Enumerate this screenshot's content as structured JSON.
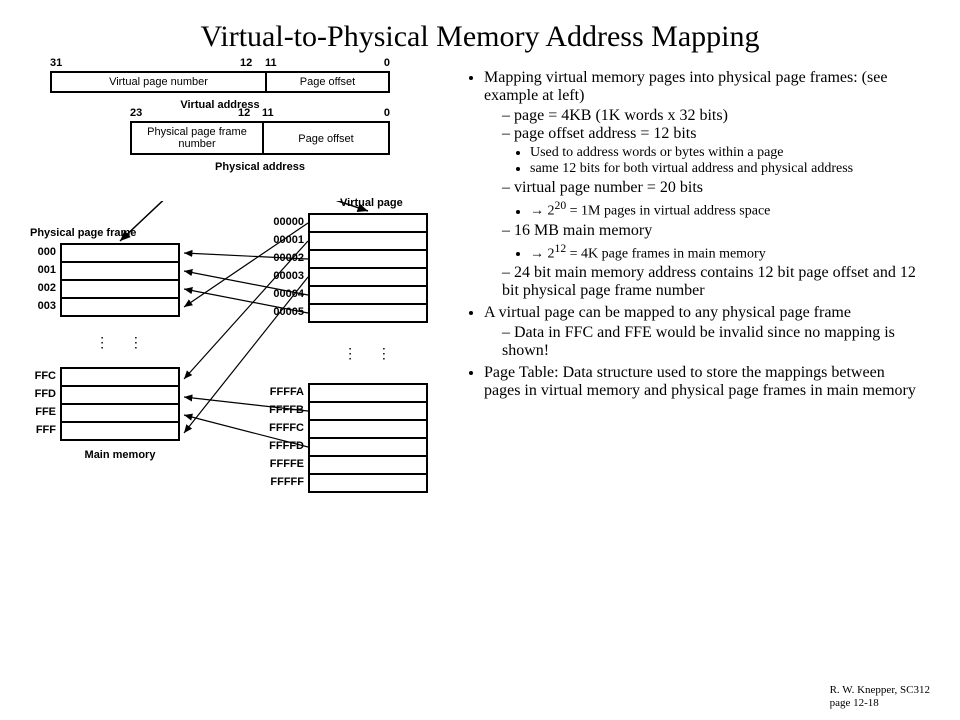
{
  "title": "Virtual-to-Physical Memory Address Mapping",
  "bullets": {
    "b1": "Mapping virtual memory pages into physical page frames:  (see example at left)",
    "b1_1": "page = 4KB (1K words x 32 bits)",
    "b1_2": "page offset address = 12 bits",
    "b1_2_1": "Used to address words or bytes within a page",
    "b1_2_2": "same 12 bits for both virtual address and physical address",
    "b1_3": "virtual page number = 20 bits",
    "b1_3_1_pre": "→ 2",
    "b1_3_1_sup": "20",
    "b1_3_1_post": " = 1M pages in virtual address space",
    "b1_4": "16 MB main memory",
    "b1_4_1_pre": "→ 2",
    "b1_4_1_sup": "12",
    "b1_4_1_post": " = 4K page frames in main memory",
    "b1_5": "24 bit main memory address contains 12 bit page offset and 12 bit physical page frame number",
    "b2": "A virtual page can be mapped to any physical page frame",
    "b2_1": "Data in FFC and FFE would be invalid since no mapping is shown!",
    "b3": "Page Table:  Data structure used to store the mappings between pages in virtual memory and physical page frames in main memory"
  },
  "diagram": {
    "va_bits": {
      "hi": "31",
      "mid_hi": "12",
      "mid_lo": "11",
      "lo": "0"
    },
    "va_left": "Virtual page number",
    "va_right": "Page offset",
    "va_label": "Virtual address",
    "pa_bits": {
      "hi": "23",
      "mid_hi": "12",
      "mid_lo": "11",
      "lo": "0"
    },
    "pa_left": "Physical page frame number",
    "pa_right": "Page offset",
    "pa_label": "Physical address",
    "ppf_label": "Physical page frame",
    "vp_label": "Virtual page",
    "mm_label": "Main memory",
    "phys_top": [
      "000",
      "001",
      "002",
      "003"
    ],
    "phys_bot": [
      "FFC",
      "FFD",
      "FFE",
      "FFF"
    ],
    "virt_top": [
      "00000",
      "00001",
      "00002",
      "00003",
      "00004",
      "00005"
    ],
    "virt_bot": [
      "FFFFA",
      "FFFFB",
      "FFFFC",
      "FFFFD",
      "FFFFE",
      "FFFFF"
    ],
    "colors": {
      "line": "#000000",
      "bg": "#ffffff"
    }
  },
  "footer": {
    "line1": "R. W. Knepper, SC312",
    "line2": "page 12-18"
  }
}
